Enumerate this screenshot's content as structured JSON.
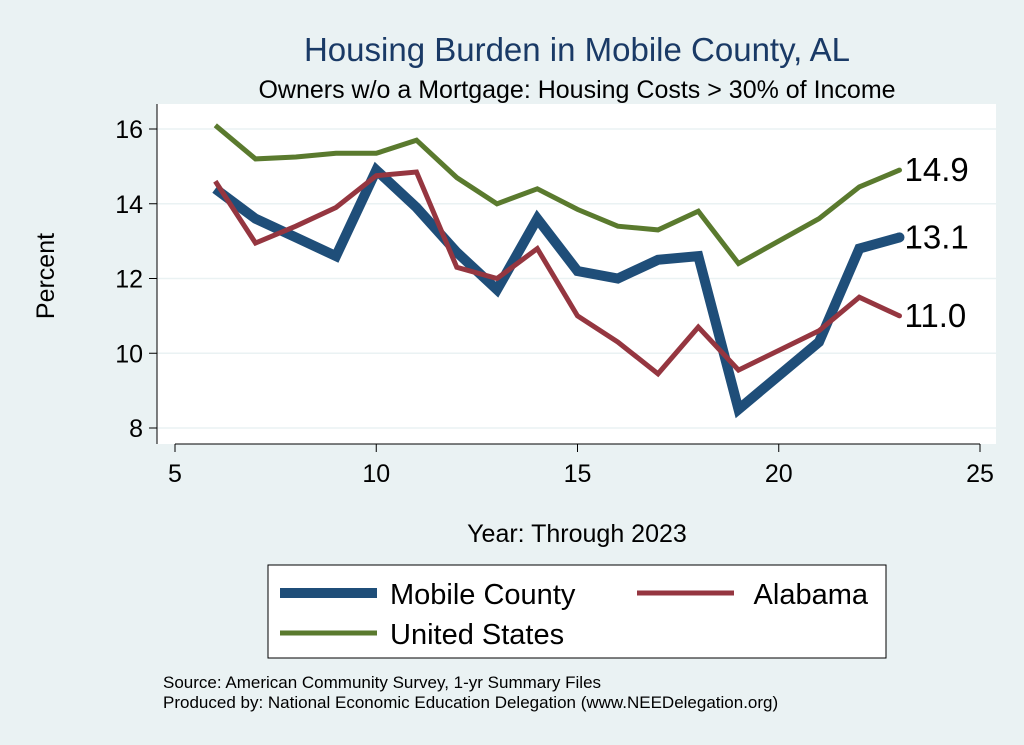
{
  "chart_data": {
    "type": "line",
    "title": "Housing Burden in Mobile County, AL",
    "subtitle": "Owners w/o a Mortgage: Housing Costs > 30% of Income",
    "xlabel": "Year: Through 2023",
    "ylabel": "Percent",
    "xlim": [
      5,
      25
    ],
    "ylim": [
      7.6,
      16.4
    ],
    "xticks": [
      5,
      10,
      15,
      20,
      25
    ],
    "yticks": [
      8,
      10,
      12,
      14,
      16
    ],
    "grid": true,
    "series": [
      {
        "name": "Mobile County",
        "color": "#1f4e79",
        "width": 10,
        "x": [
          6,
          7,
          8,
          9,
          10,
          11,
          12,
          13,
          14,
          15,
          16,
          17,
          18,
          19,
          21,
          22,
          23
        ],
        "y": [
          14.4,
          13.6,
          13.1,
          12.6,
          14.9,
          13.9,
          12.7,
          11.7,
          13.6,
          12.2,
          12.0,
          12.5,
          12.6,
          8.5,
          10.3,
          12.8,
          13.1
        ],
        "end_label": "13.1"
      },
      {
        "name": "Alabama",
        "color": "#953640",
        "width": 5,
        "x": [
          6,
          7,
          8,
          9,
          10,
          11,
          12,
          13,
          14,
          15,
          16,
          17,
          18,
          19,
          21,
          22,
          23
        ],
        "y": [
          14.6,
          12.95,
          13.4,
          13.9,
          14.75,
          14.85,
          12.3,
          12.0,
          12.8,
          11.0,
          10.3,
          9.45,
          10.7,
          9.55,
          10.6,
          11.5,
          11.0
        ],
        "end_label": "11.0"
      },
      {
        "name": "United States",
        "color": "#5a7a2e",
        "width": 5,
        "x": [
          6,
          7,
          8,
          9,
          10,
          11,
          12,
          13,
          14,
          15,
          16,
          17,
          18,
          19,
          21,
          22,
          23
        ],
        "y": [
          16.1,
          15.2,
          15.25,
          15.35,
          15.35,
          15.7,
          14.7,
          14.0,
          14.4,
          13.85,
          13.4,
          13.3,
          13.8,
          12.4,
          13.6,
          14.45,
          14.9
        ],
        "end_label": "14.9"
      }
    ],
    "legend": {
      "placement": "bottom",
      "entries": [
        "Mobile County",
        "Alabama",
        "United States"
      ]
    },
    "source_lines": [
      "Source: American Community Survey, 1-yr Summary Files",
      "Produced by: National Economic Education Delegation (www.NEEDelegation.org)"
    ]
  }
}
